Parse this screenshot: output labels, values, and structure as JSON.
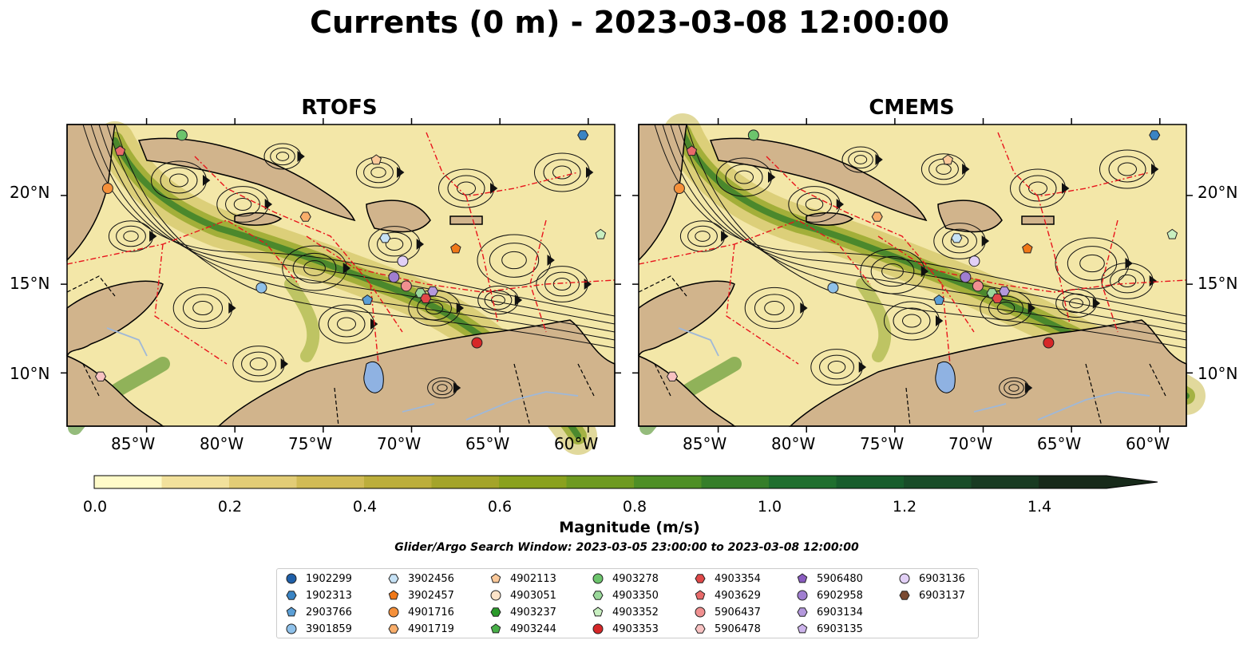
{
  "title": "Currents (0 m) - 2023-03-08 12:00:00",
  "panels": [
    {
      "title": "RTOFS"
    },
    {
      "title": "CMEMS"
    }
  ],
  "lon_ticks": [
    "85°W",
    "80°W",
    "75°W",
    "70°W",
    "65°W",
    "60°W"
  ],
  "lat_ticks": [
    "20°N",
    "15°N",
    "10°N"
  ],
  "map_extent": {
    "lon": [
      -89.5,
      -58.5
    ],
    "lat": [
      7,
      24
    ]
  },
  "colorbar": {
    "label": "Magnitude (m/s)",
    "ticks": [
      "0.0",
      "0.2",
      "0.4",
      "0.6",
      "0.8",
      "1.0",
      "1.2",
      "1.4"
    ],
    "range": [
      0,
      1.5
    ],
    "extend": "max",
    "colors": [
      "#fffbc9",
      "#f2e19c",
      "#e2cc76",
      "#d1bb55",
      "#bcae3b",
      "#a4a42a",
      "#8aa11e",
      "#6e9a20",
      "#4e8f25",
      "#357e29",
      "#1f6f2e",
      "#175d2c",
      "#184c28",
      "#183b22",
      "#172a1a"
    ]
  },
  "search_window": "Glider/Argo Search Window: 2023-03-05 23:00:00 to 2023-03-08 12:00:00",
  "legend": [
    {
      "id": "1902299",
      "marker": "circle",
      "color": "#1f5fa8"
    },
    {
      "id": "1902313",
      "marker": "hexagon",
      "color": "#3a84c4"
    },
    {
      "id": "2903766",
      "marker": "pentagon",
      "color": "#5b9fd6"
    },
    {
      "id": "3901859",
      "marker": "circle",
      "color": "#8fc1ea"
    },
    {
      "id": "3902456",
      "marker": "hexagon",
      "color": "#c6e2f6"
    },
    {
      "id": "3902457",
      "marker": "pentagon",
      "color": "#f07818"
    },
    {
      "id": "4901716",
      "marker": "circle",
      "color": "#f5903a"
    },
    {
      "id": "4901719",
      "marker": "hexagon",
      "color": "#f9ae6b"
    },
    {
      "id": "4902113",
      "marker": "pentagon",
      "color": "#fbc99a"
    },
    {
      "id": "4903051",
      "marker": "circle",
      "color": "#fde3c8"
    },
    {
      "id": "4903237",
      "marker": "hexagon",
      "color": "#2a9a2a"
    },
    {
      "id": "4903244",
      "marker": "pentagon",
      "color": "#48b048"
    },
    {
      "id": "4903278",
      "marker": "circle",
      "color": "#6cc46c"
    },
    {
      "id": "4903350",
      "marker": "hexagon",
      "color": "#9ad89a"
    },
    {
      "id": "4903352",
      "marker": "pentagon",
      "color": "#c8efc0"
    },
    {
      "id": "4903353",
      "marker": "circle",
      "color": "#d62728"
    },
    {
      "id": "4903354",
      "marker": "hexagon",
      "color": "#e04848"
    },
    {
      "id": "4903629",
      "marker": "pentagon",
      "color": "#e86a6a"
    },
    {
      "id": "5906437",
      "marker": "circle",
      "color": "#f09090"
    },
    {
      "id": "5906478",
      "marker": "hexagon",
      "color": "#f8c2c2"
    },
    {
      "id": "5906480",
      "marker": "pentagon",
      "color": "#8a5cc0"
    },
    {
      "id": "6902958",
      "marker": "circle",
      "color": "#a07ed0"
    },
    {
      "id": "6903134",
      "marker": "hexagon",
      "color": "#b498dc"
    },
    {
      "id": "6903135",
      "marker": "pentagon",
      "color": "#cdb4ec"
    },
    {
      "id": "6903136",
      "marker": "circle",
      "color": "#e2d0f6"
    },
    {
      "id": "6903137",
      "marker": "hexagon",
      "color": "#7a4a32"
    }
  ],
  "markers": [
    {
      "id": "4903278",
      "lon": -83,
      "lat": 23.4
    },
    {
      "id": "1902313",
      "lon": -60.3,
      "lat": 23.4
    },
    {
      "id": "4903629",
      "lon": -86.5,
      "lat": 22.5
    },
    {
      "id": "4902113",
      "lon": -72,
      "lat": 22.0
    },
    {
      "id": "4901716",
      "lon": -87.2,
      "lat": 20.4
    },
    {
      "id": "4901719",
      "lon": -76,
      "lat": 18.8
    },
    {
      "id": "3902456",
      "lon": -71.5,
      "lat": 17.6
    },
    {
      "id": "4903352",
      "lon": -59.3,
      "lat": 17.8
    },
    {
      "id": "3902457",
      "lon": -67.5,
      "lat": 17.0
    },
    {
      "id": "6903136",
      "lon": -70.5,
      "lat": 16.3
    },
    {
      "id": "6902958",
      "lon": -71,
      "lat": 15.4
    },
    {
      "id": "3901859",
      "lon": -78.5,
      "lat": 14.8
    },
    {
      "id": "5906437",
      "lon": -70.3,
      "lat": 14.9
    },
    {
      "id": "4903350",
      "lon": -69.5,
      "lat": 14.5
    },
    {
      "id": "6903134",
      "lon": -68.8,
      "lat": 14.6
    },
    {
      "id": "4903354",
      "lon": -69.2,
      "lat": 14.2
    },
    {
      "id": "2903766",
      "lon": -72.5,
      "lat": 14.1
    },
    {
      "id": "4903353",
      "lon": -66.3,
      "lat": 11.7
    },
    {
      "id": "5906478",
      "lon": -87.6,
      "lat": 9.8
    }
  ]
}
